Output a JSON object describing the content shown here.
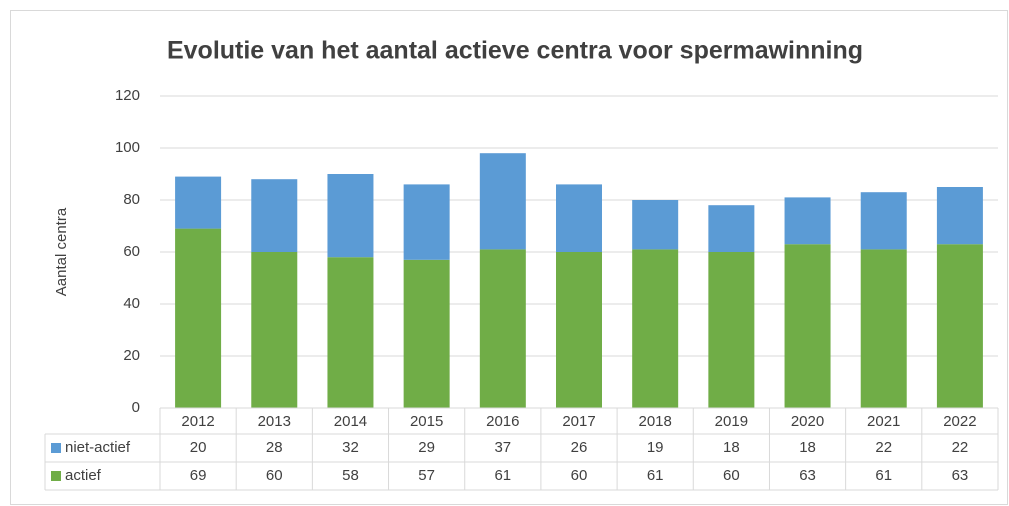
{
  "chart_data": {
    "type": "stacked_bar",
    "title": "Evolutie van het aantal actieve centra voor spermawinning",
    "y_label": "Aantal centra",
    "categories": [
      "2012",
      "2013",
      "2014",
      "2015",
      "2016",
      "2017",
      "2018",
      "2019",
      "2020",
      "2021",
      "2022"
    ],
    "series": [
      {
        "name": "niet-actief",
        "color": "#5b9bd5",
        "values": [
          20,
          28,
          32,
          29,
          37,
          26,
          19,
          18,
          18,
          22,
          22
        ]
      },
      {
        "name": "actief",
        "color": "#70ad47",
        "values": [
          69,
          60,
          58,
          57,
          61,
          60,
          61,
          60,
          63,
          61,
          63
        ]
      }
    ],
    "ylim": [
      0,
      120
    ],
    "yticks": [
      0,
      20,
      40,
      60,
      80,
      100,
      120
    ],
    "grid": true,
    "data_table": true
  }
}
